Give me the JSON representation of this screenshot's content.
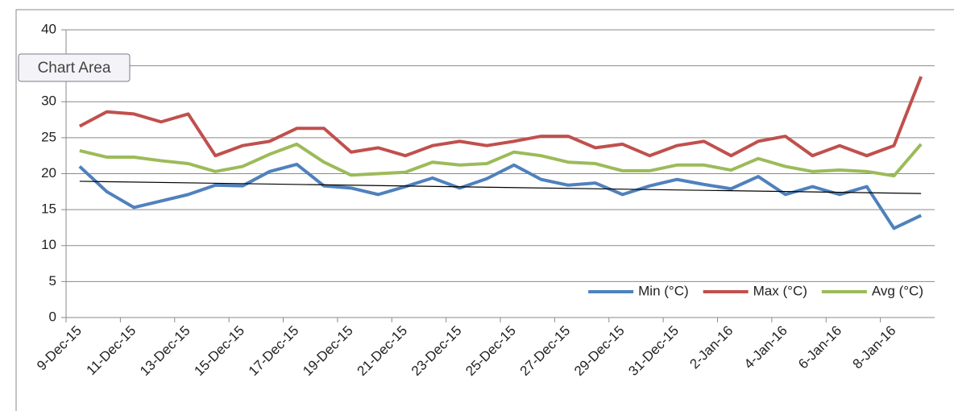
{
  "chart_data": {
    "type": "line",
    "tooltip": "Chart Area",
    "categories": [
      "9-Dec-15",
      null,
      "11-Dec-15",
      null,
      "13-Dec-15",
      null,
      "15-Dec-15",
      null,
      "17-Dec-15",
      null,
      "19-Dec-15",
      null,
      "21-Dec-15",
      null,
      "23-Dec-15",
      null,
      "25-Dec-15",
      null,
      "27-Dec-15",
      null,
      "29-Dec-15",
      null,
      "31-Dec-15",
      null,
      "2-Jan-16",
      null,
      "4-Jan-16",
      null,
      "6-Jan-16",
      null,
      "8-Jan-16",
      null
    ],
    "series": [
      {
        "name": "Min (°C)",
        "color": "#4f81bd",
        "values": [
          21,
          17.5,
          15.3,
          16.2,
          17.1,
          18.4,
          18.3,
          20.3,
          21.3,
          18.3,
          18,
          17.1,
          18.2,
          19.4,
          18,
          19.3,
          21.2,
          19.2,
          18.4,
          18.7,
          17.1,
          18.3,
          19.2,
          18.5,
          17.9,
          19.6,
          17.1,
          18.2,
          17.1,
          18.2,
          12.4,
          14.2
        ]
      },
      {
        "name": "Max (°C)",
        "color": "#c0504d",
        "values": [
          26.6,
          28.6,
          28.3,
          27.2,
          28.3,
          22.5,
          23.9,
          24.5,
          26.3,
          26.3,
          23,
          23.6,
          22.5,
          23.9,
          24.5,
          23.9,
          24.5,
          25.2,
          25.2,
          23.6,
          24.1,
          22.5,
          23.9,
          24.5,
          22.5,
          24.5,
          25.2,
          22.5,
          23.9,
          22.5,
          23.9,
          33.5
        ]
      },
      {
        "name": "Avg (°C)",
        "color": "#9bbb59",
        "values": [
          23.2,
          22.3,
          22.3,
          21.8,
          21.4,
          20.3,
          21,
          22.7,
          24.1,
          21.6,
          19.8,
          20,
          20.2,
          21.6,
          21.2,
          21.4,
          23,
          22.5,
          21.6,
          21.4,
          20.4,
          20.4,
          21.2,
          21.2,
          20.5,
          22.1,
          21,
          20.3,
          20.5,
          20.3,
          19.7,
          24.1
        ]
      }
    ],
    "trendline": {
      "series": 0,
      "color": "#000000"
    },
    "ylim": [
      0,
      40
    ],
    "yticks": [
      0,
      5,
      10,
      15,
      20,
      25,
      30,
      35,
      40
    ],
    "grid": true,
    "legend": "lower right"
  }
}
